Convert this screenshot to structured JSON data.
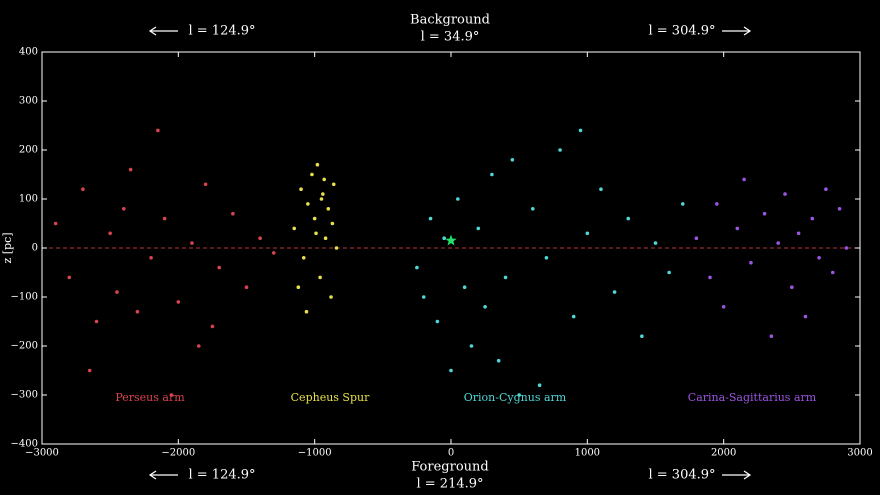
{
  "chart_data": {
    "type": "scatter",
    "ylabel": "z [pc]",
    "xlim": [
      -3000,
      3000
    ],
    "ylim": [
      -400,
      400
    ],
    "xticks": [
      {
        "value": -3000,
        "label": "−3000"
      },
      {
        "value": -2000,
        "label": "−2000"
      },
      {
        "value": -1000,
        "label": "−1000"
      },
      0,
      1000,
      2000,
      3000
    ],
    "yticks": [
      {
        "value": -400,
        "label": "−400"
      },
      {
        "value": -300,
        "label": "−300"
      },
      {
        "value": -200,
        "label": "−200"
      },
      {
        "value": -100,
        "label": "−100"
      },
      0,
      100,
      200,
      300,
      400
    ],
    "annotations": [
      "Background",
      "l = 34.9°",
      "Foreground",
      "l = 214.9°",
      "l = 124.9°",
      "l = 304.9°",
      "l = 124.9°",
      "l = 304.9°"
    ],
    "reference_line": {
      "y": 0,
      "color": "#b8303a"
    },
    "sun": {
      "x": 0,
      "y": 15,
      "color": "#22e06a"
    },
    "series": [
      {
        "name": "Perseus arm",
        "color": "#d9434f",
        "x": [
          -2900,
          -2800,
          -2700,
          -2600,
          -2500,
          -2450,
          -2400,
          -2300,
          -2200,
          -2150,
          -2100,
          -2000,
          -1900,
          -1850,
          -1800,
          -1700,
          -1600,
          -1500,
          -1400,
          -1300,
          -2650,
          -2350,
          -2050,
          -1750
        ],
        "values": [
          50,
          -60,
          120,
          -150,
          30,
          -90,
          80,
          -130,
          -20,
          240,
          60,
          -110,
          10,
          -200,
          130,
          -40,
          70,
          -80,
          20,
          -10,
          -250,
          160,
          -300,
          -160
        ]
      },
      {
        "name": "Cepheus Spur",
        "color": "#e8e04a",
        "x": [
          -1150,
          -1100,
          -1080,
          -1050,
          -1020,
          -1000,
          -980,
          -960,
          -940,
          -920,
          -900,
          -880,
          -860,
          -840,
          -1060,
          -990,
          -930,
          -870,
          -1120,
          -950
        ],
        "values": [
          40,
          120,
          -20,
          90,
          150,
          60,
          170,
          -60,
          110,
          20,
          80,
          -100,
          130,
          0,
          -130,
          30,
          140,
          50,
          -80,
          100
        ]
      },
      {
        "name": "Orion-Cygnus arm",
        "color": "#4fd6d6",
        "x": [
          -250,
          -150,
          -100,
          -50,
          0,
          50,
          100,
          150,
          200,
          250,
          300,
          400,
          500,
          600,
          700,
          800,
          900,
          1000,
          1100,
          1200,
          1300,
          1400,
          1500,
          1600,
          1700,
          -200,
          350,
          450,
          650,
          950
        ],
        "values": [
          -40,
          60,
          -150,
          20,
          -250,
          100,
          -80,
          -200,
          40,
          -120,
          150,
          -60,
          -300,
          80,
          -20,
          200,
          -140,
          30,
          120,
          -90,
          60,
          -180,
          10,
          -50,
          90,
          -100,
          -230,
          180,
          -280,
          240
        ]
      },
      {
        "name": "Carina-Sagittarius arm",
        "color": "#9b55e0",
        "x": [
          1800,
          1900,
          1950,
          2000,
          2100,
          2150,
          2200,
          2300,
          2350,
          2400,
          2450,
          2500,
          2550,
          2600,
          2650,
          2700,
          2750,
          2800,
          2850,
          2900
        ],
        "values": [
          20,
          -60,
          90,
          -120,
          40,
          140,
          -30,
          70,
          -180,
          10,
          110,
          -80,
          30,
          -140,
          60,
          -20,
          120,
          -50,
          80,
          0
        ]
      }
    ]
  }
}
